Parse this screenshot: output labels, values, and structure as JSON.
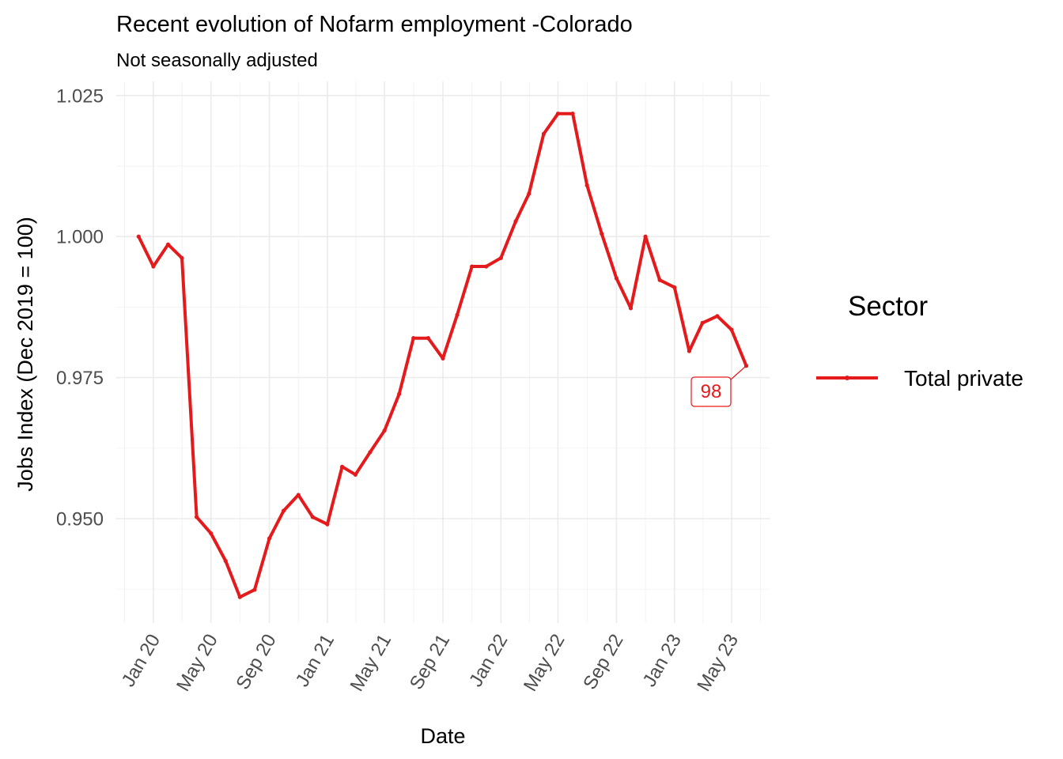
{
  "chart_data": {
    "type": "line",
    "title": "Recent evolution of Nofarm employment -Colorado",
    "subtitle": "Not seasonally adjusted",
    "xlabel": "Date",
    "ylabel": "Jobs Index (Dec 2019 = 100)",
    "x_tick_labels": [
      "Jan 20",
      "May 20",
      "Sep 20",
      "Jan 21",
      "May 21",
      "Sep 21",
      "Jan 22",
      "May 22",
      "Sep 22",
      "Jan 23",
      "May 23"
    ],
    "x_tick_dates": [
      "2020-01-01",
      "2020-05-01",
      "2020-09-01",
      "2021-01-01",
      "2021-05-01",
      "2021-09-01",
      "2022-01-01",
      "2022-05-01",
      "2022-09-01",
      "2023-01-01",
      "2023-05-01"
    ],
    "y_ticks": [
      0.95,
      0.975,
      1.0,
      1.025
    ],
    "y_tick_labels": [
      "0.950",
      "0.975",
      "1.000",
      "1.025"
    ],
    "xlim": [
      "2019-10-15",
      "2023-07-20"
    ],
    "ylim": [
      0.9315,
      1.0275
    ],
    "grid": true,
    "legend": {
      "title": "Sector",
      "position": "right"
    },
    "series": [
      {
        "name": "Total private",
        "color": "#e41a1c",
        "x": [
          "2019-12-01",
          "2020-01-01",
          "2020-02-01",
          "2020-03-01",
          "2020-04-01",
          "2020-05-01",
          "2020-06-01",
          "2020-07-01",
          "2020-08-01",
          "2020-09-01",
          "2020-10-01",
          "2020-11-01",
          "2020-12-01",
          "2021-01-01",
          "2021-02-01",
          "2021-03-01",
          "2021-04-01",
          "2021-05-01",
          "2021-06-01",
          "2021-07-01",
          "2021-08-01",
          "2021-09-01",
          "2021-10-01",
          "2021-11-01",
          "2021-12-01",
          "2022-01-01",
          "2022-02-01",
          "2022-03-01",
          "2022-04-01",
          "2022-05-01",
          "2022-06-01",
          "2022-07-01",
          "2022-08-01",
          "2022-09-01",
          "2022-10-01",
          "2022-11-01",
          "2022-12-01",
          "2023-01-01",
          "2023-02-01",
          "2023-03-01",
          "2023-04-01",
          "2023-05-01",
          "2023-06-01"
        ],
        "values": [
          1.0,
          0.9947,
          0.9986,
          0.9962,
          0.9503,
          0.9474,
          0.9425,
          0.9361,
          0.9374,
          0.9465,
          0.9514,
          0.9542,
          0.9503,
          0.949,
          0.9592,
          0.9578,
          0.9618,
          0.9656,
          0.9721,
          0.982,
          0.982,
          0.9784,
          0.9861,
          0.9947,
          0.9947,
          0.9962,
          1.0027,
          1.0076,
          1.0182,
          1.0218,
          1.0218,
          1.0091,
          1.0005,
          0.9926,
          0.9873,
          1.0,
          0.9923,
          0.991,
          0.9797,
          0.9847,
          0.9859,
          0.9835,
          0.9771
        ]
      }
    ],
    "annotations": [
      {
        "text": "98",
        "x": "2023-06-01",
        "y": 0.9771,
        "color": "#e41a1c"
      }
    ]
  }
}
